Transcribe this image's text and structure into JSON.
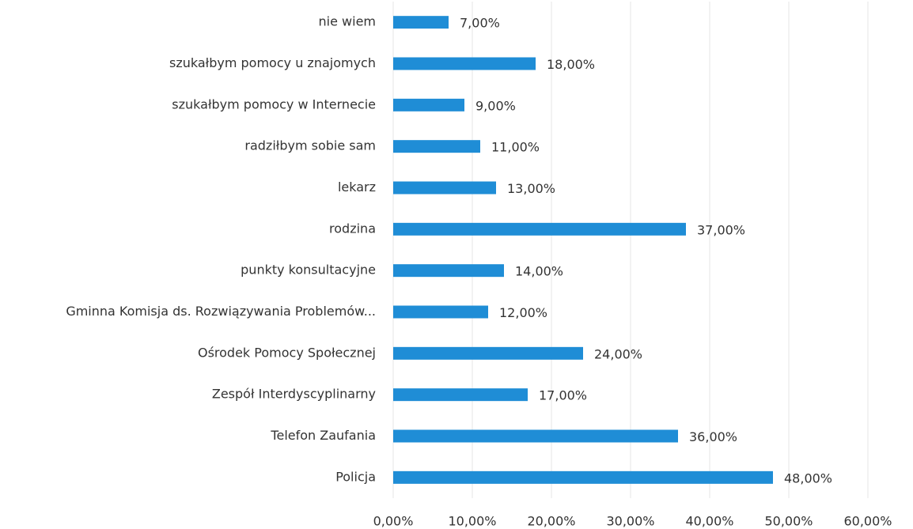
{
  "chart_data": {
    "type": "barh",
    "categories": [
      "nie wiem",
      "szukałbym pomocy u znajomych",
      "szukałbym pomocy w Internecie",
      "radziłbym sobie sam",
      "lekarz",
      "rodzina",
      "punkty konsultacyjne",
      "Gminna Komisja ds. Rozwiązywania Problemów...",
      "Ośrodek Pomocy Społecznej",
      "Zespół Interdyscyplinarny",
      "Telefon Zaufania",
      "Policja"
    ],
    "values": [
      7,
      18,
      9,
      11,
      13,
      37,
      14,
      12,
      24,
      17,
      36,
      48
    ],
    "value_labels": [
      "7,00%",
      "18,00%",
      "9,00%",
      "11,00%",
      "13,00%",
      "37,00%",
      "14,00%",
      "12,00%",
      "24,00%",
      "17,00%",
      "36,00%",
      "48,00%"
    ],
    "color": "#1f8dd6",
    "xlim": [
      0,
      60
    ],
    "xticks": [
      {
        "value": 0,
        "label": "0,00%"
      },
      {
        "value": 10,
        "label": "10,00%"
      },
      {
        "value": 20,
        "label": "20,00%"
      },
      {
        "value": 30,
        "label": "30,00%"
      },
      {
        "value": 40,
        "label": "40,00%"
      },
      {
        "value": 50,
        "label": "50,00%"
      },
      {
        "value": 60,
        "label": "60,00%"
      }
    ],
    "grid": true
  }
}
